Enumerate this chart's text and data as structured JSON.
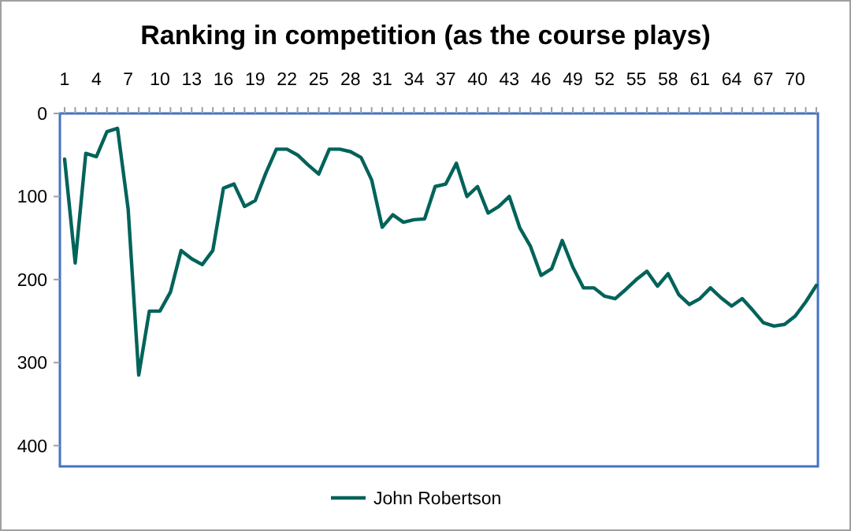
{
  "chart_data": {
    "type": "line",
    "title": "Ranking in competition (as the course plays)",
    "categories": [
      "1",
      null,
      null,
      "4",
      null,
      null,
      "7",
      null,
      null,
      "10",
      null,
      null,
      "13",
      null,
      null,
      "16",
      null,
      null,
      "19",
      null,
      null,
      "22",
      null,
      null,
      "25",
      null,
      null,
      "28",
      null,
      null,
      "31",
      null,
      null,
      "34",
      null,
      null,
      "37",
      null,
      null,
      "40",
      null,
      null,
      "43",
      null,
      null,
      "46",
      null,
      null,
      "49",
      null,
      null,
      "52",
      null,
      null,
      "55",
      null,
      null,
      "58",
      null,
      null,
      "61",
      null,
      null,
      "64",
      null,
      null,
      "67",
      null,
      null,
      "70",
      null,
      null
    ],
    "series": [
      {
        "name": "John Robertson",
        "color": "#00635a",
        "values": [
          55,
          180,
          48,
          52,
          22,
          18,
          115,
          315,
          238,
          238,
          215,
          165,
          175,
          182,
          165,
          90,
          85,
          112,
          105,
          72,
          43,
          43,
          50,
          62,
          73,
          43,
          43,
          46,
          53,
          80,
          137,
          122,
          131,
          128,
          127,
          88,
          85,
          60,
          100,
          88,
          120,
          112,
          100,
          138,
          160,
          195,
          187,
          153,
          185,
          210,
          210,
          220,
          223,
          212,
          200,
          190,
          208,
          193,
          218,
          230,
          223,
          210,
          222,
          232,
          223,
          237,
          252,
          256,
          254,
          244,
          227,
          207
        ]
      }
    ],
    "ylim": [
      425,
      0
    ],
    "yticks": [
      0,
      100,
      200,
      300,
      400
    ],
    "legend": "bottom",
    "grid": false,
    "marker": "none",
    "line_style": "solid"
  }
}
